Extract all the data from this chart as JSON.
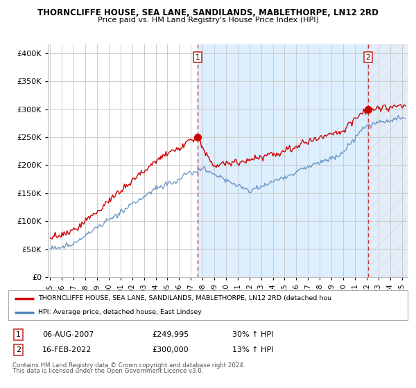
{
  "title1": "THORNCLIFFE HOUSE, SEA LANE, SANDILANDS, MABLETHORPE, LN12 2RD",
  "title2": "Price paid vs. HM Land Registry's House Price Index (HPI)",
  "ylabel_ticks": [
    "£0",
    "£50K",
    "£100K",
    "£150K",
    "£200K",
    "£250K",
    "£300K",
    "£350K",
    "£400K"
  ],
  "ytick_values": [
    0,
    50000,
    100000,
    150000,
    200000,
    250000,
    300000,
    350000,
    400000
  ],
  "ylim": [
    0,
    415000
  ],
  "xlim_start": 1994.8,
  "xlim_end": 2025.5,
  "x_years": [
    1995,
    1996,
    1997,
    1998,
    1999,
    2000,
    2001,
    2002,
    2003,
    2004,
    2005,
    2006,
    2007,
    2008,
    2009,
    2010,
    2011,
    2012,
    2013,
    2014,
    2015,
    2016,
    2017,
    2018,
    2019,
    2020,
    2021,
    2022,
    2023,
    2024,
    2025
  ],
  "red_line_color": "#cc0000",
  "blue_line_color": "#5588bb",
  "shade_color": "#ddeeff",
  "hatch_color": "#c8ddf0",
  "sale1_x": 2007.58,
  "sale1_y": 249995,
  "sale1_label": "1",
  "sale2_x": 2022.12,
  "sale2_y": 300000,
  "sale2_label": "2",
  "vline_color": "#cc3333",
  "legend_red_label": "THORNCLIFFE HOUSE, SEA LANE, SANDILANDS, MABLETHORPE, LN12 2RD (detached hou",
  "legend_blue_label": "HPI: Average price, detached house, East Lindsey",
  "table_row1": [
    "1",
    "06-AUG-2007",
    "£249,995",
    "30% ↑ HPI"
  ],
  "table_row2": [
    "2",
    "16-FEB-2022",
    "£300,000",
    "13% ↑ HPI"
  ],
  "footnote1": "Contains HM Land Registry data © Crown copyright and database right 2024.",
  "footnote2": "This data is licensed under the Open Government Licence v3.0.",
  "bg_color": "#ffffff",
  "grid_color": "#cccccc"
}
